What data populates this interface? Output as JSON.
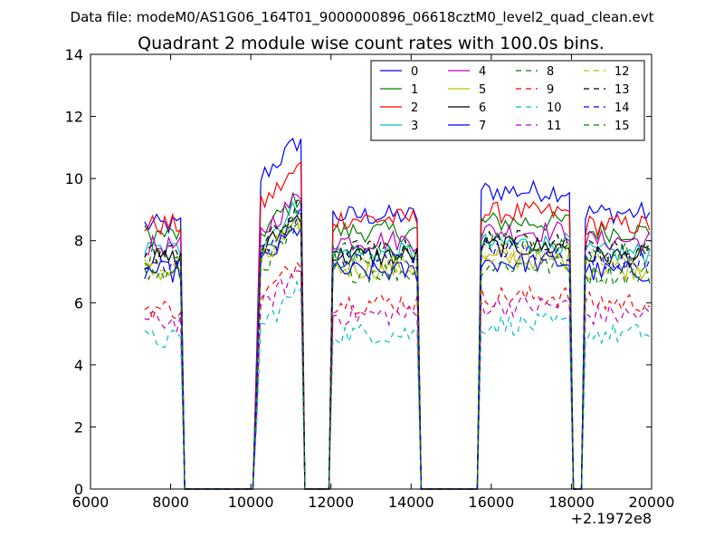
{
  "chart_data": {
    "type": "line",
    "suptitle": "Data file: modeM0/AS1G06_164T01_9000000896_06618cztM0_level2_quad_clean.evt",
    "title": "Quadrant 2 module wise count rates with 100.0s bins.",
    "xlabel": "",
    "ylabel": "",
    "x_offset_label": "+2.1972e8",
    "xlim": [
      6000,
      20000
    ],
    "ylim": [
      0,
      14
    ],
    "xticks": [
      "6000",
      "8000",
      "10000",
      "12000",
      "14000",
      "16000",
      "18000",
      "20000"
    ],
    "yticks": [
      "0",
      "2",
      "4",
      "6",
      "8",
      "10",
      "12",
      "14"
    ],
    "grid": false,
    "legend_position": "top-right",
    "legend_columns": 4,
    "segments": [
      [
        7350,
        8250
      ],
      [
        10150,
        11250
      ],
      [
        12050,
        14150
      ],
      [
        15750,
        17950
      ],
      [
        18350,
        19950
      ]
    ],
    "series": [
      {
        "name": "0",
        "color": "#0000ff",
        "dash": "solid",
        "levels": [
          8.5,
          10.4,
          8.8,
          9.6,
          8.9
        ]
      },
      {
        "name": "1",
        "color": "#008000",
        "dash": "solid",
        "levels": [
          8.2,
          8.6,
          8.3,
          8.6,
          8.3
        ]
      },
      {
        "name": "2",
        "color": "#ff0000",
        "dash": "solid",
        "levels": [
          8.5,
          9.5,
          8.7,
          8.9,
          8.5
        ]
      },
      {
        "name": "3",
        "color": "#00bfbf",
        "dash": "solid",
        "levels": [
          7.7,
          8.3,
          7.6,
          7.9,
          7.6
        ]
      },
      {
        "name": "4",
        "color": "#bf00bf",
        "dash": "solid",
        "levels": [
          7.8,
          8.6,
          8.0,
          8.3,
          8.0
        ]
      },
      {
        "name": "5",
        "color": "#bfbf00",
        "dash": "solid",
        "levels": [
          7.0,
          7.6,
          7.1,
          7.4,
          7.1
        ]
      },
      {
        "name": "6",
        "color": "#000000",
        "dash": "solid",
        "levels": [
          7.4,
          8.0,
          7.5,
          7.8,
          7.5
        ]
      },
      {
        "name": "7",
        "color": "#0000ff",
        "dash": "solid",
        "levels": [
          7.0,
          7.6,
          7.0,
          7.3,
          7.0
        ]
      },
      {
        "name": "8",
        "color": "#008000",
        "dash": "dashed",
        "levels": [
          6.9,
          7.5,
          7.0,
          7.2,
          6.9
        ]
      },
      {
        "name": "9",
        "color": "#ff0000",
        "dash": "dashed",
        "levels": [
          5.8,
          6.5,
          6.0,
          6.2,
          6.0
        ]
      },
      {
        "name": "10",
        "color": "#00bfbf",
        "dash": "dashed",
        "levels": [
          4.8,
          5.6,
          5.0,
          5.3,
          5.0
        ]
      },
      {
        "name": "11",
        "color": "#bf00bf",
        "dash": "dashed",
        "levels": [
          5.4,
          6.2,
          5.6,
          5.9,
          5.6
        ]
      },
      {
        "name": "12",
        "color": "#bfbf00",
        "dash": "dashed",
        "levels": [
          7.2,
          7.8,
          7.3,
          7.6,
          7.3
        ]
      },
      {
        "name": "13",
        "color": "#000000",
        "dash": "dashed",
        "levels": [
          7.6,
          8.2,
          7.7,
          8.0,
          7.7
        ]
      },
      {
        "name": "14",
        "color": "#0000ff",
        "dash": "dashed",
        "levels": [
          7.3,
          7.9,
          7.4,
          7.7,
          7.4
        ]
      },
      {
        "name": "15",
        "color": "#008000",
        "dash": "dashed",
        "levels": [
          7.5,
          8.1,
          7.6,
          7.9,
          7.6
        ]
      }
    ]
  }
}
